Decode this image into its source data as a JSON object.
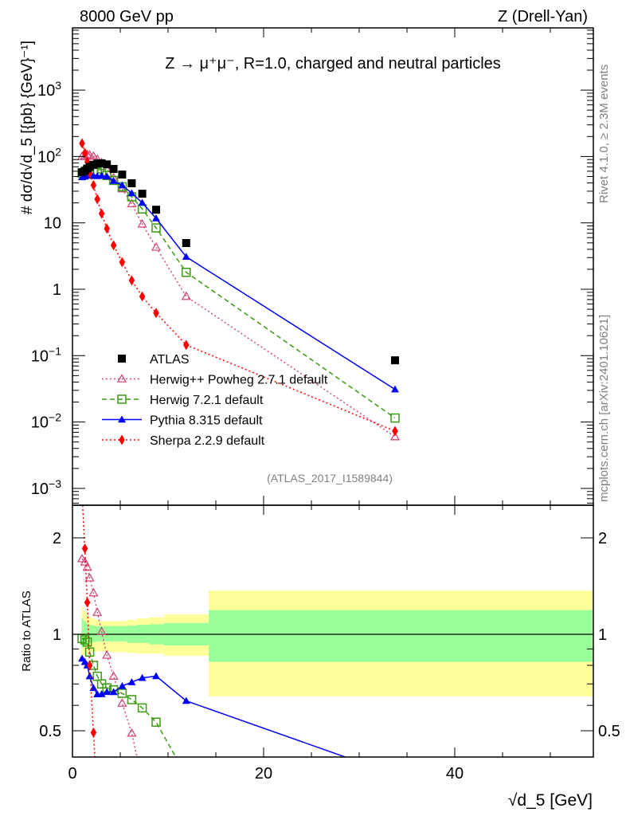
{
  "header": {
    "left": "8000 GeV pp",
    "right": "Z (Drell-Yan)",
    "title": "Z → μ⁺μ⁻, R=1.0, charged and neutral particles",
    "side_top": "Rivet 4.1.0, ≥ 2.3M events",
    "side_bottom": "mcplots.cern.ch [arXiv:2401.10621]",
    "analysis": "(ATLAS_2017_I1589844)"
  },
  "chart_data": [
    {
      "type": "line",
      "panel": "main",
      "title": "Z → μ⁺μ⁻, R=1.0, charged and neutral particles",
      "xlabel": "√d_5 [GeV]",
      "ylabel": "# dσ/d√d_5 [{pb} {GeV}⁻¹]",
      "xlim": [
        0,
        54.4
      ],
      "ylim": [
        0.00058,
        8500
      ],
      "yscale": "log",
      "x_ticks": [
        0,
        20,
        40
      ],
      "x_tick_labels": [
        "0",
        "20",
        "40"
      ],
      "y_ticks": [
        1000,
        100,
        10,
        1,
        0.1,
        0.01,
        0.001
      ],
      "y_tick_labels": [
        {
          "base": "10",
          "exp": "3"
        },
        {
          "base": "10",
          "exp": "2"
        },
        {
          "base": "10",
          "exp": ""
        },
        {
          "base": "1",
          "exp": ""
        },
        {
          "base": "10",
          "exp": "−1"
        },
        {
          "base": "10",
          "exp": "−2"
        },
        {
          "base": "10",
          "exp": "−3"
        }
      ],
      "legend_position": "bottom-left",
      "x": [
        1.0,
        1.3,
        1.55,
        1.8,
        2.2,
        2.6,
        3.05,
        3.6,
        4.3,
        5.2,
        6.2,
        7.3,
        8.75,
        11.9,
        33.75
      ],
      "series": [
        {
          "name": "ATLAS",
          "color": "#000000",
          "marker": "square",
          "line": "none",
          "values": [
            58,
            61,
            66,
            70,
            75,
            78,
            79,
            76,
            65,
            53.5,
            39.5,
            27.5,
            15.8,
            4.97,
            0.085
          ]
        },
        {
          "name": "Herwig++ Powheg 2.7.1 default",
          "color": "#d04a7a",
          "marker": "open-triangle",
          "line": "dotted",
          "values": [
            99.8,
            102.5,
            106.9,
            105,
            101,
            91.3,
            80.6,
            65.4,
            48.1,
            32.6,
            19.4,
            9.6,
            4.3,
            0.78,
            0.006
          ]
        },
        {
          "name": "Herwig 7.2.1 default",
          "color": "#3a9a10",
          "marker": "open-square",
          "line": "dashed",
          "values": [
            56.3,
            58.6,
            62.4,
            61.6,
            60,
            57.7,
            55.3,
            51.7,
            43.6,
            35,
            24.7,
            16.2,
            8.4,
            1.8,
            0.0115
          ]
        },
        {
          "name": "Pythia 8.315 default",
          "color": "#0000ff",
          "marker": "triangle",
          "line": "solid",
          "values": [
            48.7,
            50,
            52.8,
            51.8,
            51,
            50.7,
            51.4,
            50.2,
            42.9,
            36.9,
            28,
            20.1,
            11.7,
            3.08,
            0.031
          ]
        },
        {
          "name": "Sherpa 2.2.9 default",
          "color": "#ff0000",
          "marker": "diamond",
          "line": "dotted",
          "values": [
            158,
            113,
            83,
            56,
            37,
            22.7,
            13.8,
            8.2,
            4.6,
            2.56,
            1.36,
            0.78,
            0.44,
            0.145,
            0.0073
          ]
        }
      ]
    },
    {
      "type": "line",
      "panel": "ratio",
      "ylabel": "Ratio to ATLAS",
      "xlabel": "√d_5 [GeV]",
      "xlim": [
        0,
        54.4
      ],
      "ylim": [
        0.41,
        2.53
      ],
      "yscale": "log",
      "y_ticks": [
        2,
        1,
        0.5
      ],
      "y_tick_labels": [
        "2",
        "1",
        "0.5"
      ],
      "reference": "ATLAS",
      "band_colors": {
        "total": "#ffff99",
        "stat": "#99ff99"
      },
      "uncertainty_bands": [
        {
          "x": [
            0.95,
            1.15
          ],
          "total": [
            0.84,
            1.22
          ],
          "stat": [
            0.91,
            1.12
          ]
        },
        {
          "x": [
            1.15,
            1.45
          ],
          "total": [
            0.86,
            1.18
          ],
          "stat": [
            0.92,
            1.1
          ]
        },
        {
          "x": [
            1.45,
            1.7
          ],
          "total": [
            0.87,
            1.15
          ],
          "stat": [
            0.93,
            1.08
          ]
        },
        {
          "x": [
            1.7,
            2.0
          ],
          "total": [
            0.88,
            1.13
          ],
          "stat": [
            0.94,
            1.07
          ]
        },
        {
          "x": [
            2.0,
            2.4
          ],
          "total": [
            0.885,
            1.12
          ],
          "stat": [
            0.945,
            1.065
          ]
        },
        {
          "x": [
            2.4,
            2.8
          ],
          "total": [
            0.885,
            1.11
          ],
          "stat": [
            0.95,
            1.06
          ]
        },
        {
          "x": [
            2.8,
            3.3
          ],
          "total": [
            0.885,
            1.1
          ],
          "stat": [
            0.95,
            1.06
          ]
        },
        {
          "x": [
            3.3,
            3.9
          ],
          "total": [
            0.885,
            1.1
          ],
          "stat": [
            0.95,
            1.06
          ]
        },
        {
          "x": [
            3.9,
            4.7
          ],
          "total": [
            0.88,
            1.1
          ],
          "stat": [
            0.95,
            1.06
          ]
        },
        {
          "x": [
            4.7,
            5.7
          ],
          "total": [
            0.88,
            1.1
          ],
          "stat": [
            0.95,
            1.06
          ]
        },
        {
          "x": [
            5.7,
            6.7
          ],
          "total": [
            0.875,
            1.11
          ],
          "stat": [
            0.94,
            1.065
          ]
        },
        {
          "x": [
            6.7,
            8.0
          ],
          "total": [
            0.87,
            1.12
          ],
          "stat": [
            0.94,
            1.07
          ]
        },
        {
          "x": [
            8.0,
            9.6
          ],
          "total": [
            0.87,
            1.13
          ],
          "stat": [
            0.93,
            1.075
          ]
        },
        {
          "x": [
            9.6,
            14.25
          ],
          "total": [
            0.857,
            1.154
          ],
          "stat": [
            0.923,
            1.085
          ]
        },
        {
          "x": [
            14.25,
            54.4
          ],
          "total": [
            0.64,
            1.37
          ],
          "stat": [
            0.82,
            1.19
          ]
        }
      ]
    }
  ]
}
